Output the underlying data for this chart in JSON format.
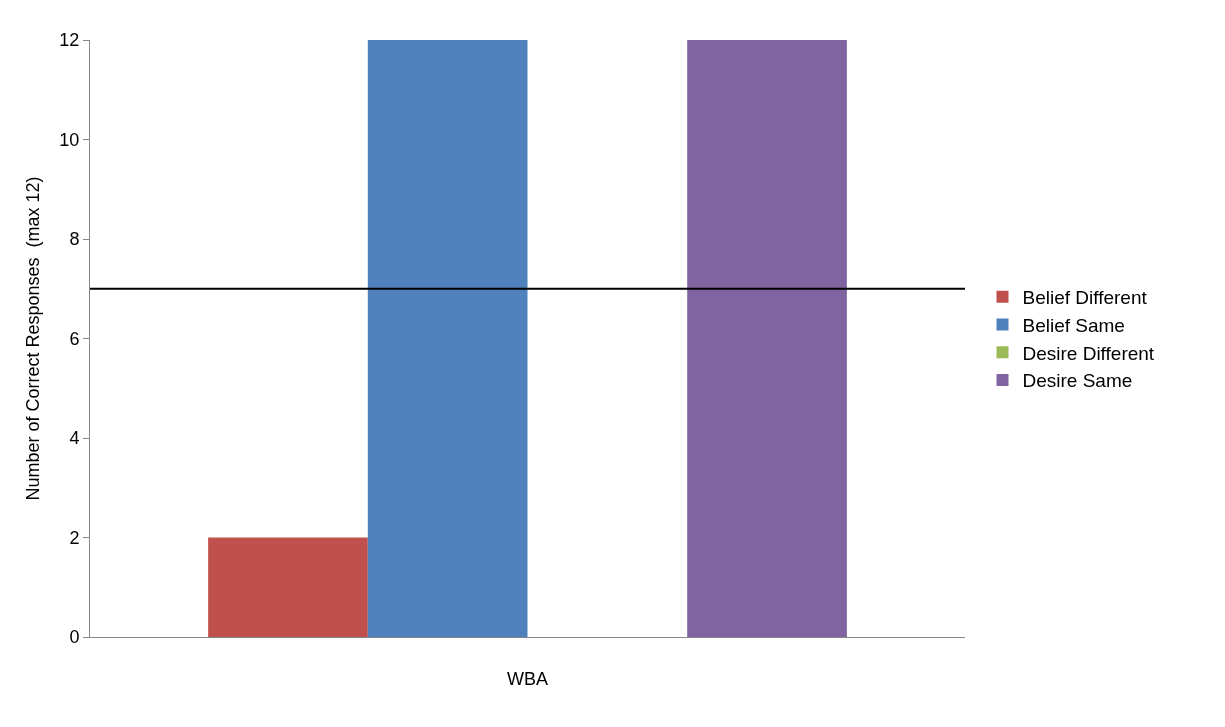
{
  "chart_data": {
    "type": "bar",
    "ylabel": "Number of Correct Responses  (max 12)",
    "categories": [
      "WBA"
    ],
    "series": [
      {
        "name": "Belief Different",
        "color": "#c0504d",
        "values": [
          2
        ]
      },
      {
        "name": "Belief Same",
        "color": "#4f81bd",
        "values": [
          12
        ]
      },
      {
        "name": "Desire Different",
        "color": "#9bbb59",
        "values": [
          0
        ]
      },
      {
        "name": "Desire Same",
        "color": "#8064a2",
        "values": [
          12
        ]
      }
    ],
    "ylim": [
      0,
      12
    ],
    "yticks": [
      0,
      2,
      4,
      6,
      8,
      10,
      12
    ],
    "ref_lines": [
      {
        "axis": "y",
        "value": 7,
        "color": "#000000"
      }
    ],
    "legend": "right"
  }
}
